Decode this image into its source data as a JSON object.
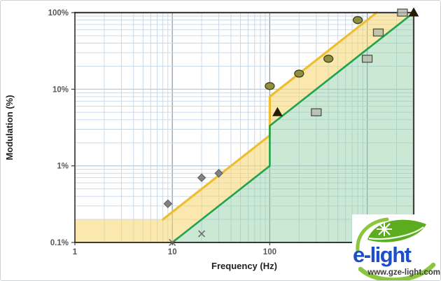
{
  "chart_data": {
    "type": "scatter",
    "title": "",
    "x_axis": {
      "label": "Frequency (Hz)",
      "scale": "log",
      "min": 1,
      "max": 3000,
      "ticks": [
        1,
        10,
        100
      ],
      "tick_labels": [
        "1",
        "10",
        "100"
      ]
    },
    "y_axis": {
      "label": "Modulation (%)",
      "scale": "log",
      "min": 0.1,
      "max": 100,
      "ticks": [
        0.1,
        1,
        10,
        100
      ],
      "tick_labels": [
        "0.1%",
        "1%",
        "10%",
        "100%"
      ]
    },
    "grid": {
      "minor_color": "#c6d6e6",
      "x_major_color": "#8c959e",
      "y_major_color": "#b5c6d8"
    },
    "regions": [
      {
        "name": "low-risk-region",
        "color": "rgba(247,214,108,0.55)",
        "polygon": [
          [
            1,
            0.1
          ],
          [
            1,
            0.2
          ],
          [
            8,
            0.2
          ],
          [
            100,
            2.5
          ],
          [
            100,
            8
          ],
          [
            1250,
            100
          ],
          [
            3000,
            100
          ],
          [
            100,
            3.33
          ],
          [
            100,
            1
          ],
          [
            10,
            0.1
          ]
        ]
      },
      {
        "name": "no-effect-region",
        "color": "rgba(139,203,161,0.45)",
        "polygon": [
          [
            10,
            0.1
          ],
          [
            100,
            1
          ],
          [
            100,
            3.33
          ],
          [
            3000,
            100
          ],
          [
            3000,
            0.1
          ]
        ]
      }
    ],
    "boundaries": [
      {
        "name": "low-risk-limit-line",
        "color": "#eebe30",
        "points": [
          [
            8,
            0.2
          ],
          [
            100,
            2.5
          ],
          [
            100,
            8
          ],
          [
            1250,
            100
          ]
        ]
      },
      {
        "name": "no-effect-limit-line",
        "color": "#1fa24d",
        "points": [
          [
            10,
            0.1
          ],
          [
            100,
            1
          ],
          [
            100,
            3.33
          ],
          [
            3000,
            100
          ]
        ]
      }
    ],
    "series": [
      {
        "name": "diamond-points",
        "marker": "diamond",
        "color": "#828282",
        "stroke": "#5a5a5a",
        "points": [
          [
            9,
            0.32
          ],
          [
            20,
            0.7
          ],
          [
            30,
            0.8
          ]
        ]
      },
      {
        "name": "x-points",
        "marker": "x",
        "color": "#6f6f6f",
        "stroke": "#6f6f6f",
        "points": [
          [
            10,
            0.1
          ],
          [
            20,
            0.13
          ]
        ]
      },
      {
        "name": "circle-points",
        "marker": "circle",
        "color": "#8f8f3d",
        "stroke": "#3f3f1a",
        "points": [
          [
            100,
            11
          ],
          [
            200,
            16
          ],
          [
            400,
            25
          ],
          [
            800,
            80
          ]
        ]
      },
      {
        "name": "triangle-points",
        "marker": "triangle",
        "color": "#241d04",
        "stroke": "#241d04",
        "points": [
          [
            120,
            5
          ],
          [
            3000,
            100
          ]
        ]
      },
      {
        "name": "square-points",
        "marker": "square",
        "color": "rgba(183,188,172,0.8)",
        "stroke": "#4f4f4f",
        "points": [
          [
            300,
            5
          ],
          [
            1000,
            25
          ],
          [
            1300,
            55
          ],
          [
            2300,
            100
          ]
        ]
      }
    ]
  },
  "logo": {
    "brand": "e-light",
    "url": "www.gze-light.com",
    "blue": "#1c4ec8",
    "ring_green": "#8cc63f",
    "leaf_green": "#5bad1f"
  }
}
